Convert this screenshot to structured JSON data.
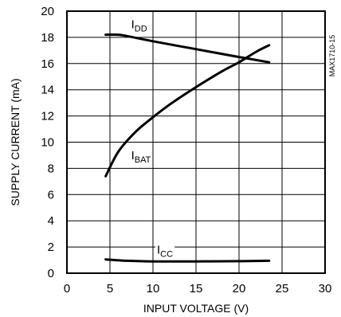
{
  "chart_data": {
    "type": "line",
    "xlabel": "INPUT VOLTAGE (V)",
    "ylabel": "SUPPLY CURRENT (mA)",
    "xlim": [
      0,
      30
    ],
    "ylim": [
      0,
      20
    ],
    "xticks": [
      "0",
      "5",
      "10",
      "15",
      "20",
      "25",
      "30"
    ],
    "yticks": [
      "0",
      "2",
      "4",
      "6",
      "8",
      "10",
      "12",
      "14",
      "16",
      "18",
      "20"
    ],
    "grid": true,
    "side_code": "MAX1710-15",
    "series": [
      {
        "name": "IDD",
        "label_main": "I",
        "label_sub": "DD",
        "x": [
          4.5,
          6,
          7,
          10,
          15,
          20,
          23.5
        ],
        "y": [
          18.2,
          18.2,
          18.1,
          17.7,
          17.1,
          16.5,
          16.1
        ]
      },
      {
        "name": "IBAT",
        "label_main": "I",
        "label_sub": "BAT",
        "x": [
          4.5,
          6,
          8,
          10,
          12,
          15,
          18,
          20,
          22,
          23.5
        ],
        "y": [
          7.4,
          9.3,
          10.8,
          11.9,
          12.9,
          14.2,
          15.4,
          16.1,
          16.9,
          17.4
        ]
      },
      {
        "name": "ICC",
        "label_main": "I",
        "label_sub": "CC",
        "x": [
          4.5,
          7,
          10,
          15,
          20,
          23.5
        ],
        "y": [
          1.05,
          0.95,
          0.9,
          0.9,
          0.92,
          0.95
        ]
      }
    ]
  }
}
